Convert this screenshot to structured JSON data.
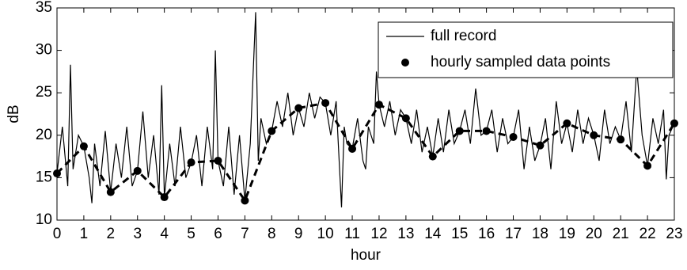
{
  "chart_data": {
    "type": "line",
    "xlabel": "hour",
    "ylabel": "dB",
    "xlim": [
      0,
      23
    ],
    "ylim": [
      10,
      35
    ],
    "xticks": [
      0,
      1,
      2,
      3,
      4,
      5,
      6,
      7,
      8,
      9,
      10,
      11,
      12,
      13,
      14,
      15,
      16,
      17,
      18,
      19,
      20,
      21,
      22,
      23
    ],
    "yticks": [
      10,
      15,
      20,
      25,
      30,
      35
    ],
    "legend": "upper right",
    "series": [
      {
        "name": "full record",
        "color": "#000000",
        "linestyle": "solid",
        "marker": "none",
        "x": [
          0,
          0.2,
          0.4,
          0.5,
          0.6,
          0.8,
          1,
          1.2,
          1.3,
          1.4,
          1.6,
          1.8,
          2,
          2.2,
          2.4,
          2.6,
          2.8,
          3,
          3.2,
          3.4,
          3.6,
          3.8,
          3.9,
          4,
          4.2,
          4.4,
          4.6,
          4.8,
          5,
          5.2,
          5.4,
          5.6,
          5.8,
          5.9,
          6,
          6.2,
          6.4,
          6.6,
          6.8,
          7,
          7.2,
          7.4,
          7.5,
          7.6,
          7.8,
          8,
          8.2,
          8.4,
          8.6,
          8.8,
          9,
          9.2,
          9.4,
          9.6,
          9.8,
          10,
          10.2,
          10.4,
          10.6,
          10.7,
          10.8,
          11,
          11.2,
          11.4,
          11.5,
          11.6,
          11.8,
          11.9,
          12,
          12.2,
          12.4,
          12.6,
          12.8,
          13,
          13.2,
          13.4,
          13.6,
          13.8,
          14,
          14.2,
          14.4,
          14.6,
          14.8,
          15,
          15.2,
          15.4,
          15.6,
          15.8,
          16,
          16.2,
          16.4,
          16.6,
          16.8,
          17,
          17.2,
          17.4,
          17.6,
          17.8,
          18,
          18.2,
          18.4,
          18.6,
          18.8,
          19,
          19.2,
          19.4,
          19.6,
          19.8,
          20,
          20.2,
          20.4,
          20.6,
          20.8,
          21,
          21.2,
          21.4,
          21.6,
          21.8,
          22,
          22.2,
          22.4,
          22.6,
          22.7,
          22.8,
          23
        ],
        "values": [
          15.5,
          21,
          14,
          28.3,
          16,
          20,
          18.7,
          15,
          12,
          19,
          14,
          20.5,
          13.3,
          19,
          15,
          21,
          14,
          15.8,
          22.8,
          15,
          20,
          13,
          25.9,
          12.7,
          19,
          14,
          21,
          15,
          16.8,
          20,
          14,
          21,
          16,
          30,
          17,
          14,
          21,
          13,
          20,
          12.3,
          19,
          34.5,
          17,
          22,
          19,
          20.5,
          24,
          21,
          25,
          20,
          23.2,
          21,
          25,
          22,
          24.5,
          23.8,
          20,
          24,
          11.5,
          21,
          19,
          18.4,
          22,
          17,
          16,
          21,
          19,
          27.5,
          23.6,
          21,
          24,
          20,
          23,
          22,
          19,
          23,
          18,
          21,
          17.5,
          22,
          18,
          23,
          19,
          20.5,
          23,
          19,
          25.5,
          20,
          20.5,
          23,
          18,
          22,
          19,
          19.8,
          23,
          16,
          21,
          17,
          18.8,
          22,
          16,
          24,
          19,
          21.4,
          18,
          23,
          19,
          22,
          20,
          17,
          23,
          19,
          21,
          19.5,
          24,
          18,
          28,
          20,
          16.4,
          22,
          19,
          23,
          14.8,
          20,
          21.4
        ]
      },
      {
        "name": "hourly sampled data points",
        "color": "#000000",
        "linestyle": "dashed",
        "marker": "circle",
        "x": [
          0,
          1,
          2,
          3,
          4,
          5,
          6,
          7,
          8,
          9,
          10,
          11,
          12,
          13,
          14,
          15,
          16,
          17,
          18,
          19,
          20,
          21,
          22,
          23
        ],
        "values": [
          15.5,
          18.7,
          13.3,
          15.8,
          12.7,
          16.8,
          17.0,
          12.3,
          20.5,
          23.2,
          23.8,
          18.4,
          23.6,
          22.0,
          17.5,
          20.5,
          20.5,
          19.8,
          18.8,
          21.4,
          20.0,
          19.5,
          16.4,
          21.4
        ]
      }
    ]
  }
}
